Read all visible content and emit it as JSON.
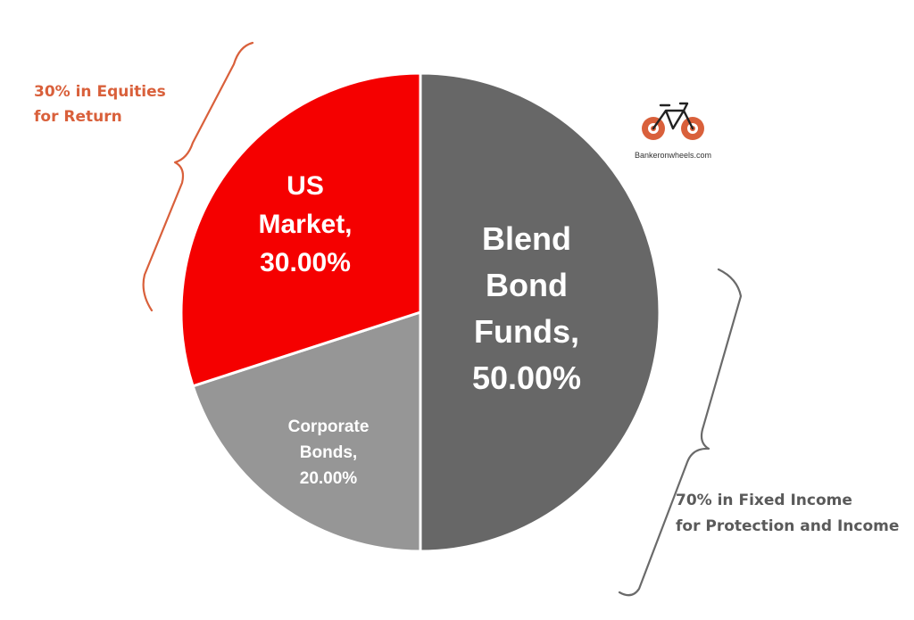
{
  "chart_data": {
    "type": "pie",
    "slices": [
      {
        "name": "Blend Bond Funds",
        "value": 50.0,
        "label": [
          "Blend",
          "Bond",
          "Funds,",
          "50.00%"
        ],
        "color": "#676767"
      },
      {
        "name": "Corporate Bonds",
        "value": 20.0,
        "label": [
          "Corporate",
          "Bonds,",
          "20.00%"
        ],
        "color": "#969696"
      },
      {
        "name": "US Market",
        "value": 30.0,
        "label": [
          "US",
          "Market,",
          "30.00%"
        ],
        "color": "#f50000"
      }
    ],
    "start_angle_deg": 0,
    "direction": "clockwise"
  },
  "annotations": {
    "equities": {
      "line1": "30% in Equities",
      "line2": "for Return",
      "color": "#d9603b"
    },
    "fixed_income": {
      "line1": "70% in Fixed Income",
      "line2": "for Protection and Income",
      "color": "#5a5a5a"
    }
  },
  "logo": {
    "text": "Bankeronwheels.com",
    "icon": "bicycle-icon",
    "color": "#d9603b"
  }
}
